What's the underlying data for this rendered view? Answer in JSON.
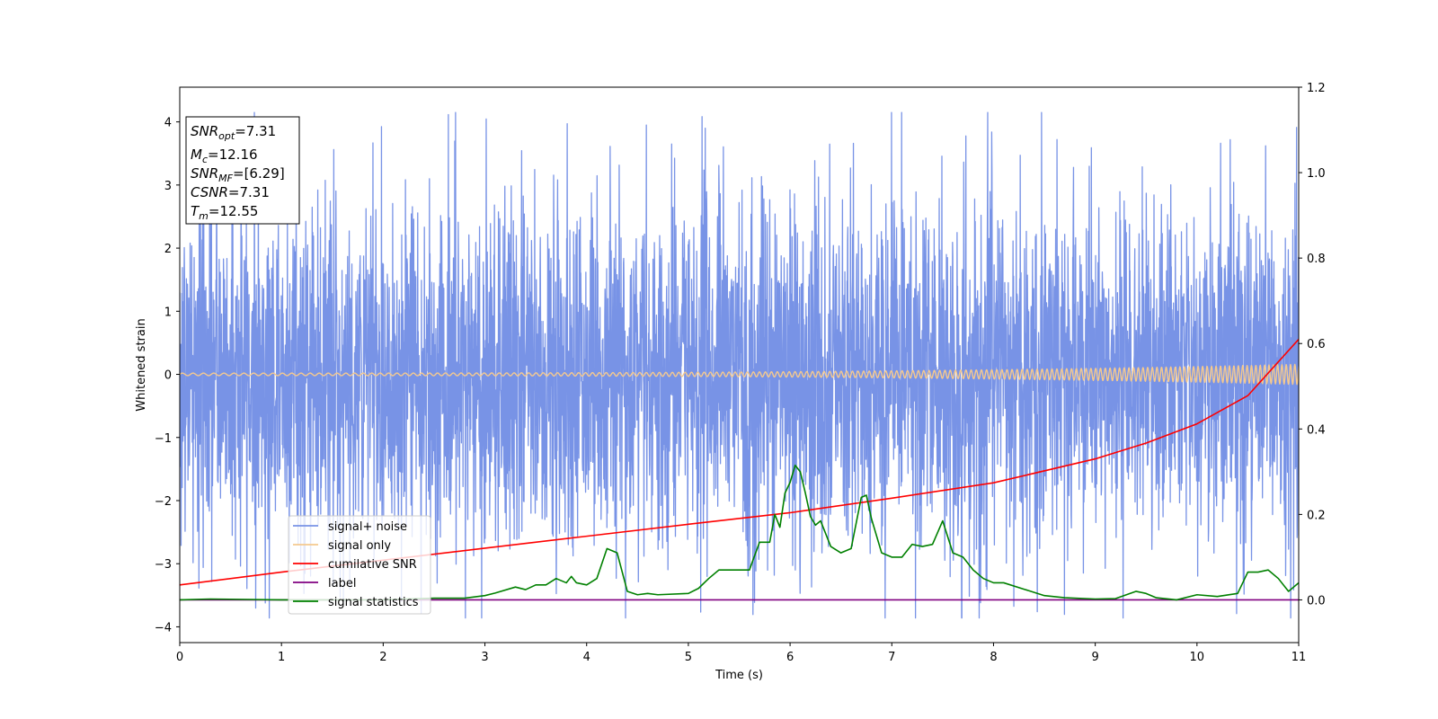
{
  "chart_data": {
    "type": "line",
    "xlabel": "Time (s)",
    "ylabel": "Whitened strain",
    "xlim": [
      0,
      11
    ],
    "ylim": [
      -4.25,
      4.55
    ],
    "ylim_right": [
      -0.1,
      1.2
    ],
    "xticks": [
      0,
      1,
      2,
      3,
      4,
      5,
      6,
      7,
      8,
      9,
      10,
      11
    ],
    "yticks": [
      -4,
      -3,
      -2,
      -1,
      0,
      1,
      2,
      3,
      4
    ],
    "yticks_right": [
      0.0,
      0.2,
      0.4,
      0.6,
      0.8,
      1.0,
      1.2
    ],
    "xtick_labels": [
      "0",
      "1",
      "2",
      "3",
      "4",
      "5",
      "6",
      "7",
      "8",
      "9",
      "10",
      "11"
    ],
    "ytick_labels": [
      "−4",
      "−3",
      "−2",
      "−1",
      "0",
      "1",
      "2",
      "3",
      "4"
    ],
    "ytick_labels_right": [
      "0.0",
      "0.2",
      "0.4",
      "0.6",
      "0.8",
      "1.0",
      "1.2"
    ],
    "grid": false,
    "legend_position": "lower-left",
    "annotation": [
      {
        "sym": "SNR",
        "sub": "opt",
        "val": "=7.31"
      },
      {
        "sym": "M",
        "sub": "c",
        "val": "=12.16"
      },
      {
        "sym": "SNR",
        "sub": "MF",
        "val": "=[6.29]"
      },
      {
        "sym": "CSNR",
        "sub": "",
        "val": "=7.31"
      },
      {
        "sym": "T",
        "sub": "m",
        "val": "=12.55"
      }
    ],
    "series": [
      {
        "name": "signal+ noise",
        "axis": "left",
        "color": "#7893e6",
        "kind": "noise",
        "envelope": 1.4,
        "spike_max": 4.15
      },
      {
        "name": "signal only",
        "axis": "left",
        "color": "#f5c98e",
        "kind": "chirp",
        "amplitude_start": 0.02,
        "amplitude_end": 0.16
      },
      {
        "name": "cumilative SNR",
        "axis": "right",
        "color": "#ff0000",
        "x": [
          0,
          1,
          2,
          3,
          4,
          5,
          6,
          7,
          8,
          9,
          9.5,
          10,
          10.5,
          11
        ],
        "y": [
          0.035,
          0.065,
          0.093,
          0.121,
          0.149,
          0.177,
          0.204,
          0.238,
          0.274,
          0.33,
          0.367,
          0.412,
          0.478,
          0.61
        ]
      },
      {
        "name": "label",
        "axis": "right",
        "color": "#800080",
        "x": [
          0,
          11
        ],
        "y": [
          0.0,
          0.0
        ]
      },
      {
        "name": "signal statistics",
        "axis": "right",
        "color": "#008000",
        "x": [
          0,
          0.3,
          1.0,
          2.0,
          2.5,
          2.8,
          3.0,
          3.1,
          3.3,
          3.4,
          3.5,
          3.6,
          3.7,
          3.8,
          3.85,
          3.9,
          4.0,
          4.1,
          4.2,
          4.25,
          4.3,
          4.4,
          4.5,
          4.6,
          4.7,
          5.0,
          5.1,
          5.2,
          5.3,
          5.4,
          5.5,
          5.6,
          5.7,
          5.8,
          5.85,
          5.9,
          5.95,
          6.0,
          6.05,
          6.1,
          6.15,
          6.2,
          6.25,
          6.3,
          6.4,
          6.5,
          6.6,
          6.7,
          6.75,
          6.8,
          6.9,
          7.0,
          7.1,
          7.2,
          7.3,
          7.4,
          7.5,
          7.6,
          7.7,
          7.8,
          7.9,
          8.0,
          8.1,
          8.3,
          8.5,
          8.7,
          9.0,
          9.2,
          9.4,
          9.5,
          9.6,
          9.8,
          10.0,
          10.2,
          10.4,
          10.5,
          10.6,
          10.7,
          10.8,
          10.9,
          11.0
        ],
        "y": [
          0.0,
          0.002,
          0.0,
          0.0,
          0.004,
          0.004,
          0.01,
          0.016,
          0.03,
          0.024,
          0.035,
          0.035,
          0.05,
          0.04,
          0.055,
          0.04,
          0.035,
          0.05,
          0.12,
          0.115,
          0.11,
          0.02,
          0.012,
          0.015,
          0.012,
          0.015,
          0.027,
          0.05,
          0.07,
          0.07,
          0.07,
          0.07,
          0.135,
          0.135,
          0.2,
          0.17,
          0.25,
          0.275,
          0.315,
          0.3,
          0.25,
          0.195,
          0.175,
          0.185,
          0.125,
          0.11,
          0.12,
          0.24,
          0.245,
          0.19,
          0.11,
          0.1,
          0.1,
          0.13,
          0.125,
          0.13,
          0.185,
          0.11,
          0.1,
          0.07,
          0.05,
          0.04,
          0.04,
          0.025,
          0.01,
          0.005,
          0.002,
          0.003,
          0.02,
          0.015,
          0.005,
          0.0,
          0.012,
          0.008,
          0.015,
          0.065,
          0.065,
          0.07,
          0.05,
          0.02,
          0.04
        ]
      }
    ]
  }
}
